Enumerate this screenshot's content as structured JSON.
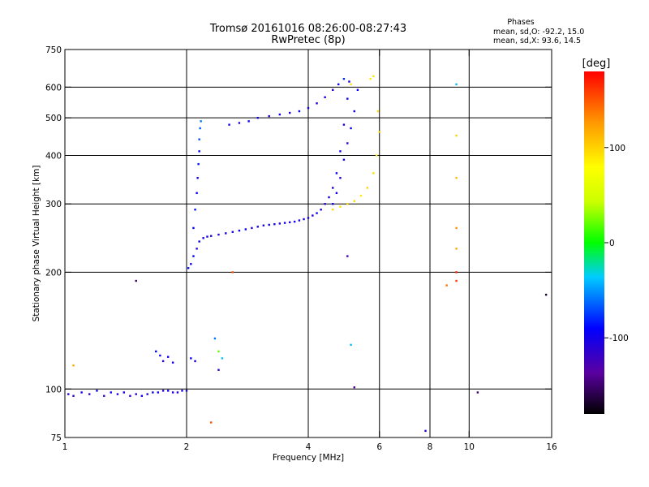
{
  "chart_data": {
    "type": "scatter",
    "title": "Tromsø 20161016 08:26:00-08:27:43",
    "subtitle": "RwPretec (8p)",
    "phase_info": {
      "heading": "Phases",
      "line_o": "mean, sd,O: -92.2, 15.0",
      "line_x": "mean, sd,X:  93.6, 14.5"
    },
    "xlabel": "Frequency [MHz]",
    "ylabel": "Stationary phase Virtual Height [km]",
    "x_scale": "log",
    "y_scale": "log",
    "xlim": [
      1,
      16
    ],
    "ylim": [
      75,
      750
    ],
    "x_ticks": [
      1,
      2,
      4,
      6,
      8,
      10,
      16
    ],
    "y_ticks": [
      75,
      100,
      200,
      300,
      400,
      500,
      600,
      750
    ],
    "x_grid": [
      2,
      4,
      6,
      8,
      10
    ],
    "y_grid": [
      100,
      200,
      300,
      400,
      500,
      600
    ],
    "colorbar": {
      "label": "[deg]",
      "range": [
        -180,
        180
      ],
      "ticks": [
        100,
        0,
        -100
      ]
    },
    "series": [
      {
        "comment": "E-layer trace",
        "points": [
          [
            1.02,
            97,
            -105
          ],
          [
            1.05,
            96,
            -110
          ],
          [
            1.1,
            98,
            -100
          ],
          [
            1.15,
            97,
            -115
          ],
          [
            1.2,
            99,
            -95
          ],
          [
            1.25,
            96,
            -120
          ],
          [
            1.3,
            98,
            -100
          ],
          [
            1.35,
            97,
            -110
          ],
          [
            1.4,
            98,
            -100
          ],
          [
            1.45,
            96,
            -115
          ],
          [
            1.5,
            97,
            -105
          ],
          [
            1.55,
            96,
            -100
          ],
          [
            1.6,
            97,
            -110
          ],
          [
            1.65,
            98,
            -95
          ],
          [
            1.7,
            98,
            -100
          ],
          [
            1.75,
            99,
            -110
          ],
          [
            1.8,
            99,
            -100
          ],
          [
            1.85,
            98,
            -105
          ],
          [
            1.9,
            98,
            -110
          ],
          [
            1.95,
            99,
            -100
          ],
          [
            2.0,
            99,
            -105
          ]
        ]
      },
      {
        "comment": "Es / scattered near 1.7-2.5 MHz",
        "points": [
          [
            1.68,
            125,
            -90
          ],
          [
            1.72,
            122,
            -100
          ],
          [
            1.75,
            118,
            -110
          ],
          [
            1.8,
            121,
            -95
          ],
          [
            1.85,
            117,
            -100
          ],
          [
            2.05,
            120,
            -95
          ],
          [
            2.1,
            118,
            -100
          ],
          [
            2.35,
            135,
            -60
          ],
          [
            2.4,
            125,
            20
          ],
          [
            2.45,
            120,
            -40
          ],
          [
            2.4,
            112,
            -110
          ]
        ]
      },
      {
        "comment": "F1 O trace lower branch",
        "points": [
          [
            2.02,
            205,
            -85
          ],
          [
            2.05,
            210,
            -100
          ],
          [
            2.08,
            220,
            -90
          ],
          [
            2.12,
            230,
            -110
          ],
          [
            2.15,
            240,
            -95
          ],
          [
            2.2,
            245,
            -100
          ],
          [
            2.25,
            247,
            -105
          ],
          [
            2.3,
            248,
            -100
          ],
          [
            2.4,
            250,
            -110
          ],
          [
            2.5,
            252,
            -100
          ],
          [
            2.6,
            254,
            -105
          ],
          [
            2.7,
            256,
            -95
          ],
          [
            2.8,
            258,
            -100
          ],
          [
            2.9,
            260,
            -110
          ],
          [
            3.0,
            262,
            -100
          ],
          [
            3.1,
            264,
            -105
          ],
          [
            3.2,
            265,
            -95
          ],
          [
            3.3,
            266,
            -100
          ],
          [
            3.4,
            267,
            -110
          ],
          [
            3.5,
            268,
            -100
          ],
          [
            3.6,
            269,
            -105
          ],
          [
            3.7,
            270,
            -95
          ],
          [
            3.8,
            272,
            -100
          ],
          [
            3.9,
            274,
            -110
          ],
          [
            4.0,
            276,
            -100
          ],
          [
            4.1,
            280,
            -105
          ],
          [
            4.2,
            284,
            -95
          ],
          [
            4.3,
            290,
            -100
          ],
          [
            4.4,
            300,
            -110
          ],
          [
            4.5,
            312,
            -100
          ],
          [
            4.6,
            330,
            -105
          ],
          [
            4.7,
            360,
            -95
          ],
          [
            4.8,
            410,
            -100
          ],
          [
            4.9,
            480,
            -110
          ],
          [
            5.0,
            560,
            -100
          ],
          [
            5.05,
            620,
            -105
          ]
        ]
      },
      {
        "comment": "F1 vertical branch near 2 MHz",
        "points": [
          [
            2.08,
            260,
            -90
          ],
          [
            2.1,
            290,
            -85
          ],
          [
            2.12,
            320,
            -95
          ],
          [
            2.13,
            350,
            -100
          ],
          [
            2.14,
            380,
            -85
          ],
          [
            2.15,
            410,
            -90
          ],
          [
            2.15,
            440,
            -70
          ],
          [
            2.16,
            470,
            -65
          ],
          [
            2.17,
            490,
            -60
          ]
        ]
      },
      {
        "comment": "Upper F2 branch",
        "points": [
          [
            2.55,
            480,
            -100
          ],
          [
            2.7,
            485,
            -110
          ],
          [
            2.85,
            490,
            -95
          ],
          [
            3.0,
            500,
            -100
          ],
          [
            3.2,
            505,
            -110
          ],
          [
            3.4,
            510,
            -100
          ],
          [
            3.6,
            515,
            -105
          ],
          [
            3.8,
            520,
            -95
          ],
          [
            4.0,
            530,
            -100
          ],
          [
            4.2,
            545,
            -110
          ],
          [
            4.4,
            565,
            -100
          ],
          [
            4.6,
            590,
            -105
          ],
          [
            4.75,
            610,
            -95
          ],
          [
            4.9,
            630,
            -80
          ]
        ]
      },
      {
        "comment": "O trace inner branch",
        "points": [
          [
            4.6,
            300,
            -95
          ],
          [
            4.7,
            320,
            -100
          ],
          [
            4.8,
            350,
            -110
          ],
          [
            4.9,
            390,
            -100
          ],
          [
            5.0,
            430,
            -105
          ],
          [
            5.1,
            470,
            -95
          ],
          [
            5.2,
            520,
            -100
          ],
          [
            5.3,
            590,
            -95
          ]
        ]
      },
      {
        "comment": "X trace (yellow)",
        "points": [
          [
            4.6,
            290,
            95
          ],
          [
            4.8,
            295,
            90
          ],
          [
            5.0,
            300,
            100
          ],
          [
            5.2,
            305,
            95
          ],
          [
            5.4,
            315,
            90
          ],
          [
            5.6,
            330,
            100
          ],
          [
            5.8,
            360,
            95
          ],
          [
            5.9,
            400,
            90
          ],
          [
            6.0,
            460,
            100
          ],
          [
            5.95,
            520,
            95
          ],
          [
            5.7,
            630,
            85
          ],
          [
            5.8,
            640,
            90
          ],
          [
            5.1,
            610,
            95
          ]
        ]
      },
      {
        "comment": "Isolated points",
        "points": [
          [
            1.5,
            190,
            -150
          ],
          [
            2.6,
            200,
            150
          ],
          [
            2.3,
            82,
            150
          ],
          [
            5.0,
            220,
            -120
          ],
          [
            5.1,
            130,
            -40
          ],
          [
            5.2,
            101,
            -140
          ],
          [
            7.8,
            78,
            -110
          ],
          [
            8.8,
            185,
            140
          ],
          [
            9.3,
            190,
            160
          ],
          [
            9.3,
            200,
            170
          ],
          [
            9.3,
            230,
            120
          ],
          [
            9.3,
            260,
            130
          ],
          [
            9.3,
            350,
            110
          ],
          [
            9.3,
            450,
            100
          ],
          [
            9.3,
            610,
            -40
          ],
          [
            10.5,
            98,
            -150
          ],
          [
            15.5,
            175,
            -170
          ],
          [
            1.05,
            115,
            120
          ]
        ]
      }
    ]
  }
}
